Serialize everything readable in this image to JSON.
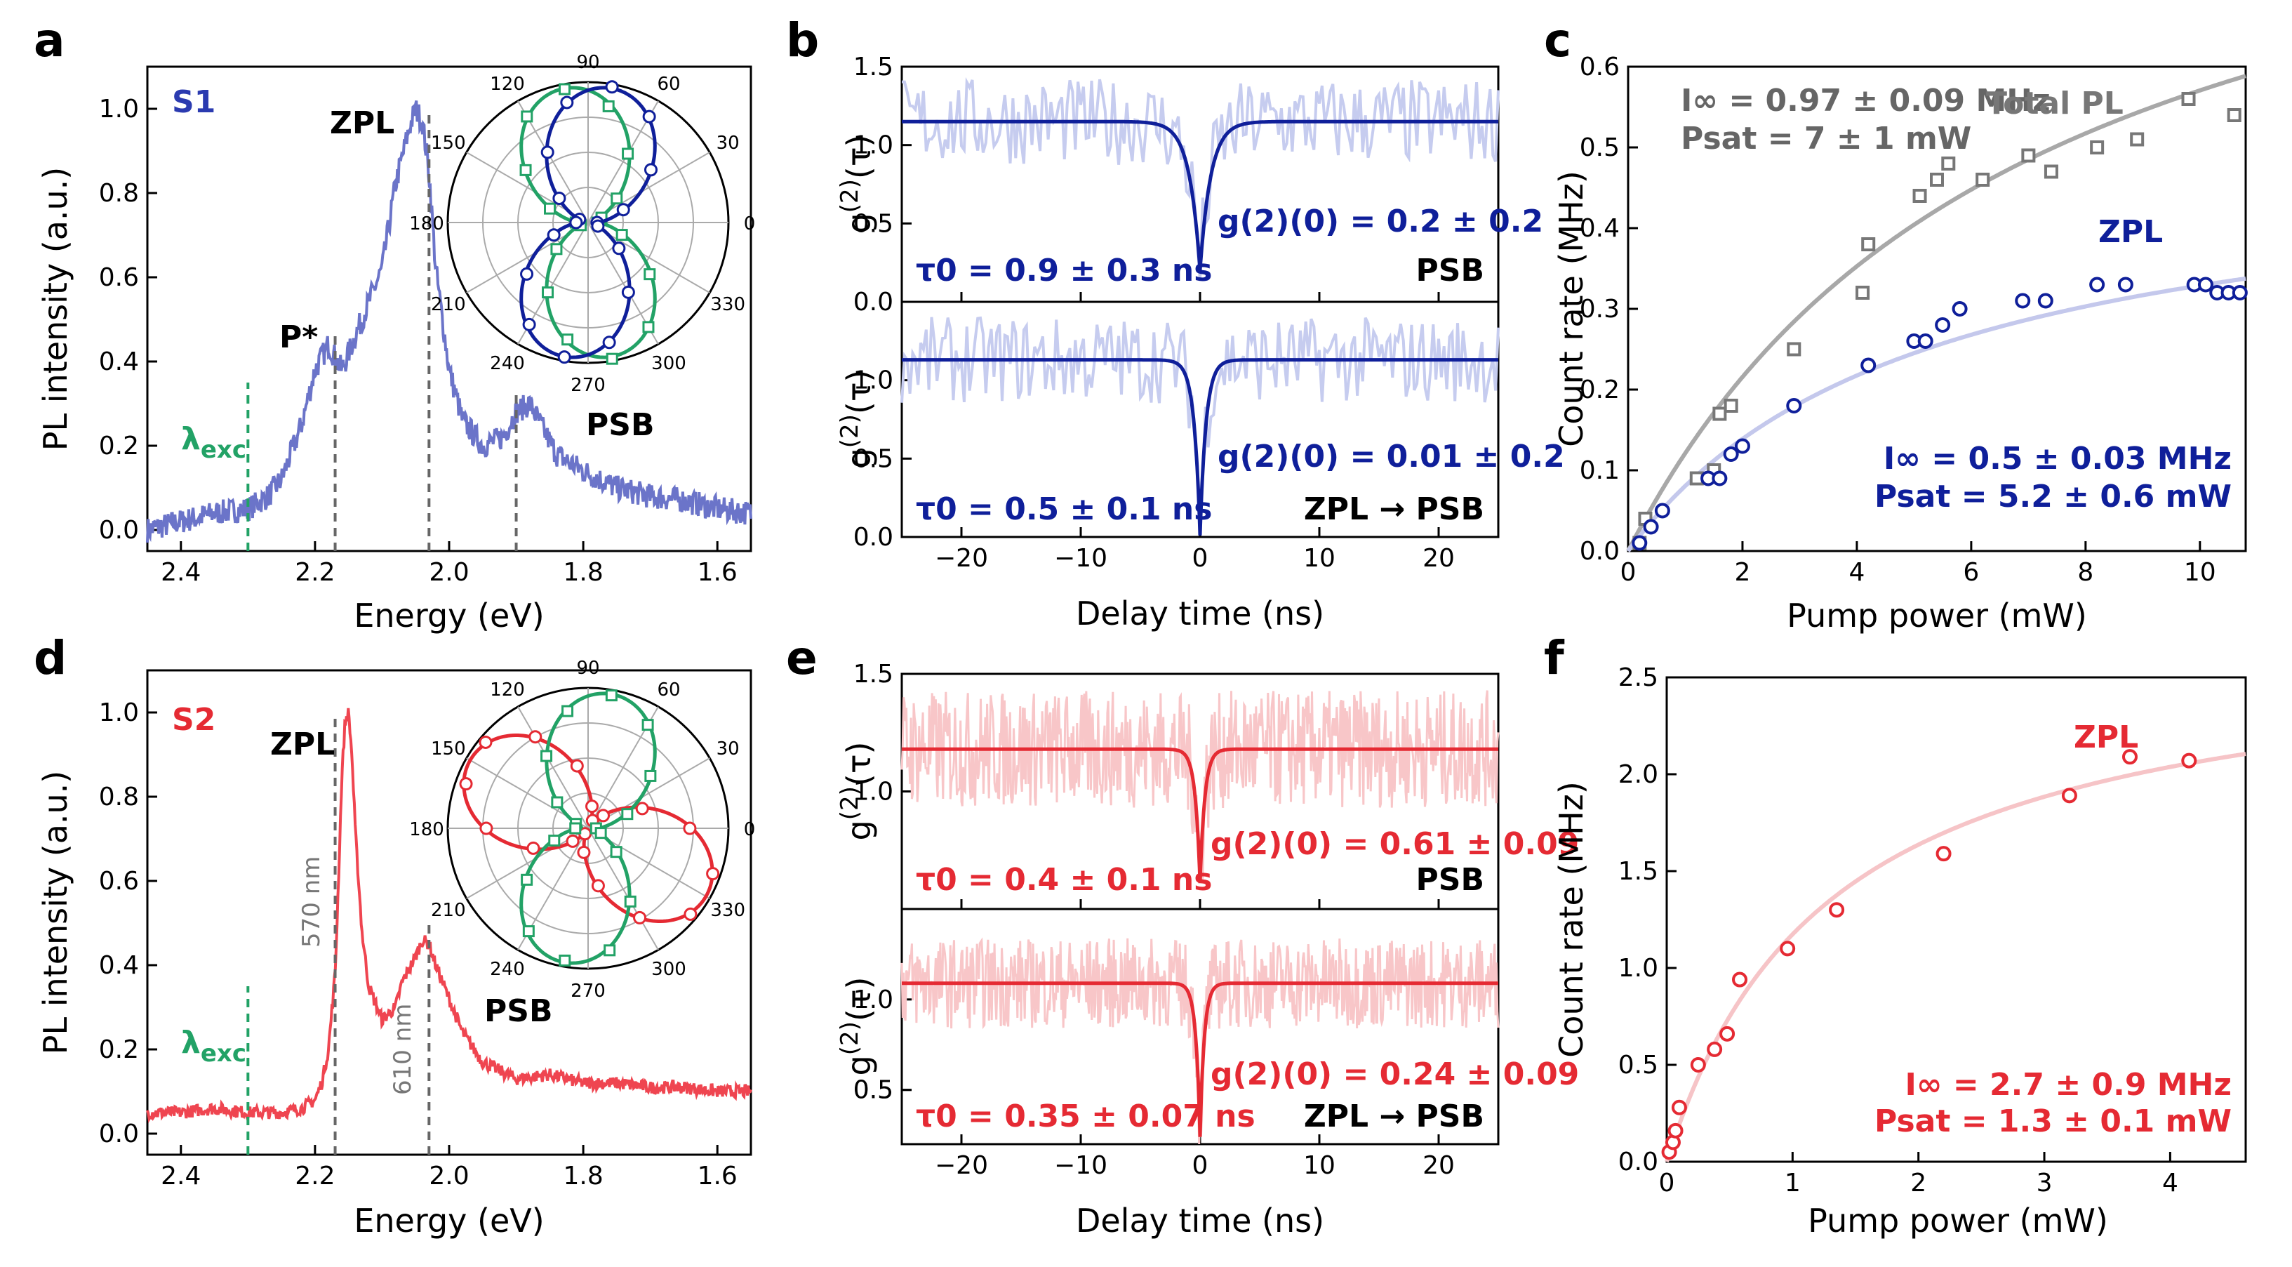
{
  "colors": {
    "s1": "#6b74c9",
    "s1_fit": "#0f1f9a",
    "s1_raw": "#c6ccef",
    "s2": "#ef4550",
    "s2_fit": "#e52a33",
    "s2_raw": "#f8c6c8",
    "green": "#22a266",
    "gray": "#777777",
    "gray_fit": "#a8a8a8",
    "blue_fit": "#c4c8ec",
    "red_fit": "#f6c4c7"
  },
  "chart_data": [
    {
      "panel": "a",
      "type": "line",
      "sample_label": "S1",
      "xlabel": "Energy (eV)",
      "ylabel": "PL intensity (a.u.)",
      "xlim": [
        2.45,
        1.55
      ],
      "ylim": [
        -0.05,
        1.1
      ],
      "xticks": [
        "2.4",
        "2.2",
        "2.0",
        "1.8",
        "1.6"
      ],
      "yticks": [
        "0.0",
        "0.2",
        "0.4",
        "0.6",
        "0.8",
        "1.0"
      ],
      "series": [
        {
          "name": "PL spectrum",
          "x": [
            2.45,
            2.4,
            2.35,
            2.3,
            2.27,
            2.25,
            2.22,
            2.2,
            2.18,
            2.17,
            2.16,
            2.15,
            2.13,
            2.1,
            2.08,
            2.06,
            2.05,
            2.04,
            2.03,
            2.02,
            2.0,
            1.98,
            1.95,
            1.92,
            1.9,
            1.88,
            1.86,
            1.84,
            1.8,
            1.75,
            1.7,
            1.65,
            1.6,
            1.55
          ],
          "y": [
            0.0,
            0.02,
            0.04,
            0.05,
            0.08,
            0.12,
            0.25,
            0.38,
            0.44,
            0.41,
            0.38,
            0.42,
            0.5,
            0.62,
            0.82,
            0.95,
            1.0,
            0.97,
            0.85,
            0.62,
            0.38,
            0.26,
            0.2,
            0.22,
            0.28,
            0.3,
            0.24,
            0.18,
            0.14,
            0.1,
            0.08,
            0.07,
            0.05,
            0.04
          ]
        }
      ],
      "annotations": [
        "ZPL",
        "P*",
        "PSB",
        "λexc"
      ],
      "markers_eV": {
        "lambda_exc": 2.3,
        "P_star": 2.17,
        "ZPL": 2.03,
        "PSB": 1.9
      },
      "inset_polar": {
        "angle_ticks": [
          "90",
          "60",
          "30",
          "0",
          "330",
          "300",
          "270",
          "240",
          "210",
          "180",
          "150",
          "120"
        ],
        "series": [
          {
            "name": "green",
            "orientation_deg": 100
          },
          {
            "name": "blue",
            "orientation_deg": 80
          }
        ]
      }
    },
    {
      "panel": "b",
      "type": "line",
      "xlabel": "Delay time (ns)",
      "ylabel": "g(2)(τ)",
      "xlim": [
        -25,
        25
      ],
      "xticks": [
        "−20",
        "−10",
        "0",
        "10",
        "20"
      ],
      "subplots": [
        {
          "label": "PSB",
          "ylim": [
            0,
            1.5
          ],
          "yticks": [
            "0.0",
            "0.5",
            "1.0",
            "1.5"
          ],
          "baseline": 1.15,
          "g2_0": 0.2,
          "tau0_ns": 0.9,
          "g2_text": "g(2)(0) = 0.2 ± 0.2",
          "tau_text": "τ0 = 0.9 ± 0.3 ns"
        },
        {
          "label": "ZPL → PSB",
          "ylim": [
            0,
            1.5
          ],
          "yticks": [
            "0.0",
            "0.5",
            "1.0"
          ],
          "baseline": 1.13,
          "g2_0": 0.01,
          "tau0_ns": 0.5,
          "g2_text": "g(2)(0) = 0.01 ± 0.2",
          "tau_text": "τ0 = 0.5 ± 0.1 ns"
        }
      ]
    },
    {
      "panel": "c",
      "type": "scatter",
      "xlabel": "Pump power (mW)",
      "ylabel": "Count  rate (MHz)",
      "xlim": [
        0,
        10.8
      ],
      "ylim": [
        0,
        0.6
      ],
      "xticks": [
        "0",
        "2",
        "4",
        "6",
        "8",
        "10"
      ],
      "yticks": [
        "0.0",
        "0.1",
        "0.2",
        "0.3",
        "0.4",
        "0.5",
        "0.6"
      ],
      "series": [
        {
          "name": "Total PL",
          "x": [
            0.2,
            0.3,
            1.2,
            1.5,
            1.6,
            1.8,
            2.9,
            4.1,
            4.2,
            5.1,
            5.4,
            5.6,
            6.2,
            7.0,
            7.4,
            8.2,
            8.9,
            9.8,
            10.6
          ],
          "y": [
            0.01,
            0.04,
            0.09,
            0.1,
            0.17,
            0.18,
            0.25,
            0.32,
            0.38,
            0.44,
            0.46,
            0.48,
            0.46,
            0.49,
            0.47,
            0.5,
            0.51,
            0.56,
            0.54
          ],
          "fit": {
            "I_inf": 0.97,
            "P_sat": 7
          }
        },
        {
          "name": "ZPL",
          "x": [
            0.2,
            0.4,
            0.6,
            1.4,
            1.6,
            1.8,
            2.0,
            2.9,
            4.2,
            5.0,
            5.2,
            5.5,
            5.8,
            6.9,
            7.3,
            8.2,
            8.7,
            9.9,
            10.1,
            10.3,
            10.5,
            10.7
          ],
          "y": [
            0.01,
            0.03,
            0.05,
            0.09,
            0.09,
            0.12,
            0.13,
            0.18,
            0.23,
            0.26,
            0.26,
            0.28,
            0.3,
            0.31,
            0.31,
            0.33,
            0.33,
            0.33,
            0.33,
            0.32,
            0.32,
            0.32
          ],
          "fit": {
            "I_inf": 0.5,
            "P_sat": 5.2
          }
        }
      ],
      "annotations": {
        "total_fit_1": "I∞ = 0.97 ± 0.09 MHz",
        "total_fit_2": "Psat = 7 ± 1 mW",
        "zpl_fit_1": "I∞ = 0.5 ± 0.03 MHz",
        "zpl_fit_2": "Psat = 5.2 ± 0.6 mW"
      }
    },
    {
      "panel": "d",
      "type": "line",
      "sample_label": "S2",
      "xlabel": "Energy (eV)",
      "ylabel": "PL intensity (a.u.)",
      "xlim": [
        2.45,
        1.55
      ],
      "ylim": [
        -0.05,
        1.1
      ],
      "xticks": [
        "2.4",
        "2.2",
        "2.0",
        "1.8",
        "1.6"
      ],
      "yticks": [
        "0.0",
        "0.2",
        "0.4",
        "0.6",
        "0.8",
        "1.0"
      ],
      "series": [
        {
          "name": "PL spectrum",
          "x": [
            2.45,
            2.4,
            2.35,
            2.3,
            2.25,
            2.22,
            2.2,
            2.19,
            2.18,
            2.17,
            2.165,
            2.16,
            2.155,
            2.15,
            2.145,
            2.14,
            2.13,
            2.12,
            2.1,
            2.08,
            2.07,
            2.05,
            2.04,
            2.03,
            2.02,
            2.0,
            1.98,
            1.95,
            1.9,
            1.85,
            1.8,
            1.75,
            1.7,
            1.65,
            1.6,
            1.55
          ],
          "y": [
            0.05,
            0.05,
            0.06,
            0.05,
            0.05,
            0.06,
            0.08,
            0.12,
            0.2,
            0.38,
            0.6,
            0.85,
            0.98,
            1.0,
            0.9,
            0.72,
            0.48,
            0.35,
            0.27,
            0.3,
            0.36,
            0.42,
            0.46,
            0.45,
            0.4,
            0.32,
            0.24,
            0.17,
            0.13,
            0.14,
            0.12,
            0.12,
            0.11,
            0.11,
            0.1,
            0.1
          ]
        }
      ],
      "annotations": [
        "ZPL",
        "PSB",
        "λexc",
        "570 nm",
        "610 nm"
      ],
      "markers_eV": {
        "lambda_exc": 2.3,
        "ZPL": 2.17,
        "PSB": 2.03
      },
      "inset_polar": {
        "angle_ticks": [
          "90",
          "60",
          "30",
          "0",
          "330",
          "300",
          "270",
          "240",
          "210",
          "180",
          "150",
          "120"
        ],
        "series": [
          {
            "name": "red",
            "orientation_deg": 150
          },
          {
            "name": "green",
            "orientation_deg": 80
          }
        ]
      }
    },
    {
      "panel": "e",
      "type": "line",
      "xlabel": "Delay time (ns)",
      "ylabel": "g(2)(τ)",
      "xlim": [
        -25,
        25
      ],
      "xticks": [
        "−20",
        "−10",
        "0",
        "10",
        "20"
      ],
      "subplots": [
        {
          "label": "PSB",
          "ylim": [
            0.5,
            1.5
          ],
          "yticks": [
            "1.0",
            "1.5"
          ],
          "baseline": 1.18,
          "g2_0": 0.61,
          "tau0_ns": 0.4,
          "g2_text": "g(2)(0) = 0.61 ± 0.09",
          "tau_text": "τ0 = 0.4 ± 0.1 ns"
        },
        {
          "label": "ZPL → PSB",
          "ylim": [
            0.2,
            1.5
          ],
          "yticks": [
            "0.5",
            "1.0",
            "0.5"
          ],
          "baseline": 1.09,
          "g2_0": 0.24,
          "tau0_ns": 0.35,
          "g2_text": "g(2)(0) = 0.24 ± 0.09",
          "tau_text": "τ0 = 0.35 ± 0.07 ns"
        }
      ]
    },
    {
      "panel": "f",
      "type": "scatter",
      "xlabel": "Pump power (mW)",
      "ylabel": "Count  rate (MHz)",
      "xlim": [
        0,
        4.6
      ],
      "ylim": [
        0,
        2.5
      ],
      "xticks": [
        "0",
        "1",
        "2",
        "3",
        "4"
      ],
      "yticks": [
        "0.0",
        "0.5",
        "1.0",
        "1.5",
        "2.0",
        "2.5"
      ],
      "series": [
        {
          "name": "ZPL",
          "x": [
            0.02,
            0.05,
            0.07,
            0.1,
            0.25,
            0.38,
            0.48,
            0.58,
            0.96,
            1.35,
            2.2,
            3.2,
            3.68,
            4.15
          ],
          "y": [
            0.05,
            0.1,
            0.16,
            0.28,
            0.5,
            0.58,
            0.66,
            0.94,
            1.1,
            1.3,
            1.59,
            1.89,
            2.09,
            2.07
          ],
          "fit": {
            "I_inf": 2.7,
            "P_sat": 1.3
          }
        }
      ],
      "annotations": {
        "zpl_fit_1": "I∞ = 2.7 ± 0.9 MHz",
        "zpl_fit_2": "Psat = 1.3 ± 0.1 mW"
      }
    }
  ],
  "labels": {
    "a": "a",
    "b": "b",
    "c": "c",
    "d": "d",
    "e": "e",
    "f": "f",
    "s1": "S1",
    "s2": "S2",
    "zpl": "ZPL",
    "pstar": "P*",
    "psb": "PSB",
    "lambda": "λ",
    "exc": "exc",
    "nm570": "570 nm",
    "nm610": "610 nm",
    "total_pl": "Total PL",
    "zpl_psb": "ZPL → PSB",
    "energy": "Energy (eV)",
    "pl_int": "PL intensity (a.u.)",
    "delay": "Delay time (ns)",
    "count": "Count  rate (MHz)",
    "pump": "Pump power (mW)",
    "g2": "g",
    "g2_sup": "(2)",
    "g2_tau": "(τ)",
    "b_top_g2": "g(2)(0) = 0.2 ± 0.2",
    "b_top_tau": "τ0 = 0.9 ± 0.3 ns",
    "b_bot_g2": "g(2)(0) = 0.01 ± 0.2",
    "b_bot_tau": "τ0 = 0.5 ± 0.1 ns",
    "e_top_g2": "g(2)(0) = 0.61 ± 0.09",
    "e_top_tau": "τ0 = 0.4 ± 0.1 ns",
    "e_bot_g2": "g(2)(0) = 0.24 ± 0.09",
    "e_bot_tau": "τ0 = 0.35 ± 0.07 ns",
    "c_t1": "I∞ = 0.97 ± 0.09 MHz",
    "c_t2": "Psat = 7 ± 1 mW",
    "c_z1": "I∞ = 0.5 ± 0.03 MHz",
    "c_z2": "Psat = 5.2 ± 0.6 mW",
    "f_z1": "I∞ = 2.7 ± 0.9 MHz",
    "f_z2": "Psat = 1.3 ± 0.1 mW"
  }
}
